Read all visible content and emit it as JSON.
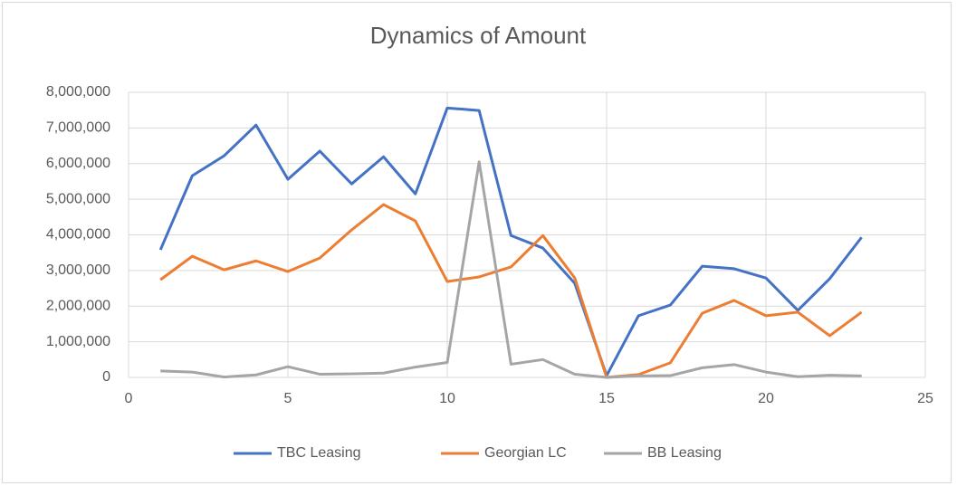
{
  "chart_data": {
    "type": "line",
    "title": "Dynamics of Amount",
    "x": [
      1,
      2,
      3,
      4,
      5,
      6,
      7,
      8,
      9,
      10,
      11,
      12,
      13,
      14,
      15,
      16,
      17,
      18,
      19,
      20,
      21,
      22,
      23
    ],
    "series": [
      {
        "name": "TBC Leasing",
        "color": "#4472c4",
        "values": [
          3580000,
          5660000,
          6220000,
          7080000,
          5560000,
          6350000,
          5430000,
          6190000,
          5150000,
          7560000,
          7490000,
          3980000,
          3630000,
          2640000,
          50000,
          1730000,
          2030000,
          3120000,
          3050000,
          2790000,
          1880000,
          2770000,
          3930000
        ]
      },
      {
        "name": "Georgian LC",
        "color": "#ed7d31",
        "values": [
          2740000,
          3400000,
          3020000,
          3270000,
          2970000,
          3350000,
          4140000,
          4850000,
          4390000,
          2690000,
          2820000,
          3100000,
          3980000,
          2790000,
          0,
          80000,
          410000,
          1800000,
          2160000,
          1730000,
          1830000,
          1170000,
          1830000
        ]
      },
      {
        "name": "BB Leasing",
        "color": "#a5a5a5",
        "values": [
          180000,
          150000,
          10000,
          70000,
          300000,
          90000,
          100000,
          120000,
          290000,
          420000,
          6050000,
          370000,
          500000,
          90000,
          0,
          40000,
          50000,
          270000,
          360000,
          150000,
          20000,
          60000,
          40000
        ]
      }
    ],
    "xlim": [
      0,
      25
    ],
    "xticks": [
      0,
      5,
      10,
      15,
      20,
      25
    ],
    "ylim": [
      0,
      8000000
    ],
    "yticks": [
      0,
      {
        "value": 1000000,
        "label": "1,000,000"
      },
      {
        "value": 2000000,
        "label": "2,000,000"
      },
      {
        "value": 3000000,
        "label": "3,000,000"
      },
      {
        "value": 4000000,
        "label": "4,000,000"
      },
      {
        "value": 5000000,
        "label": "5,000,000"
      },
      {
        "value": 6000000,
        "label": "6,000,000"
      },
      {
        "value": 7000000,
        "label": "7,000,000"
      },
      {
        "value": 8000000,
        "label": "8,000,000"
      }
    ],
    "grid": true,
    "legend": "bottom"
  }
}
